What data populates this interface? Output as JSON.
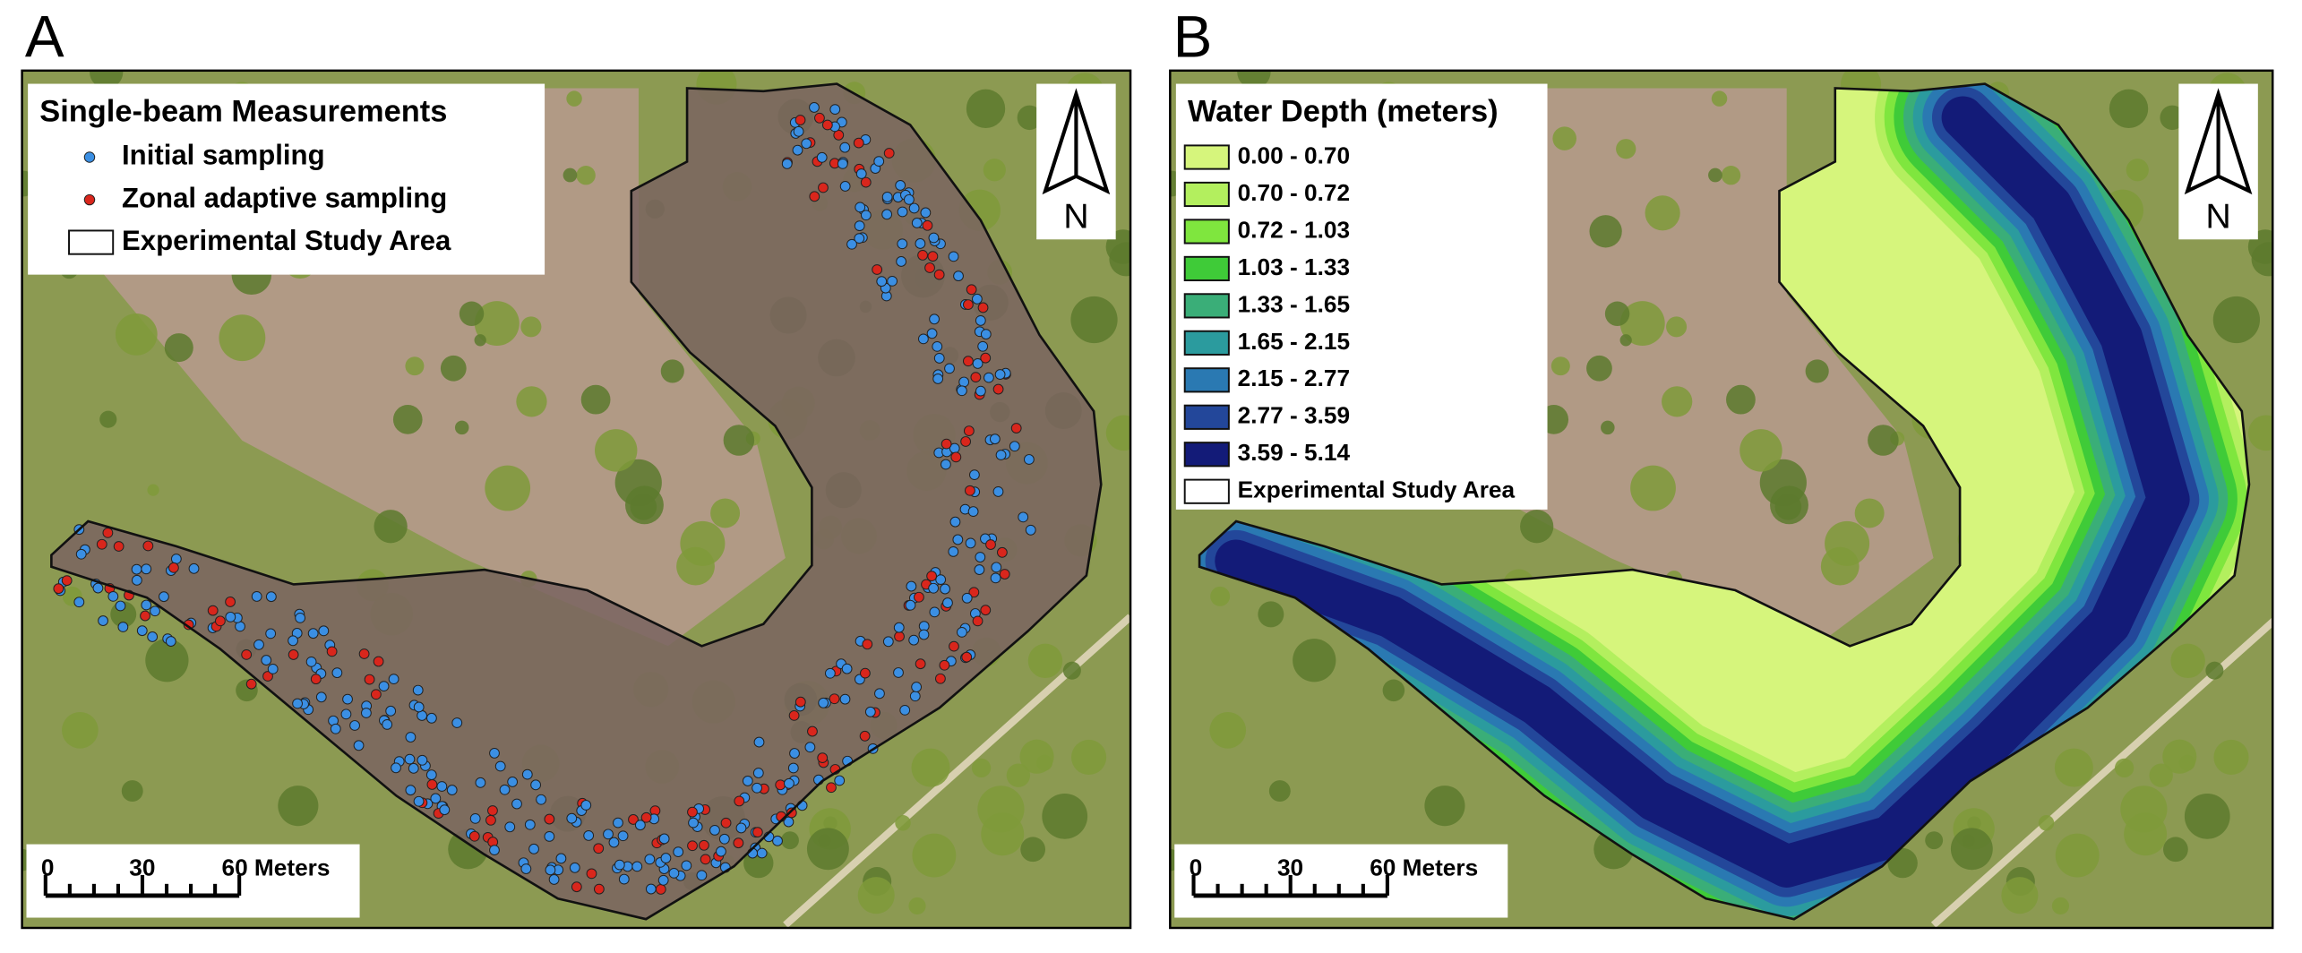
{
  "panels": [
    {
      "label": "A",
      "legend": {
        "title": "Single-beam Measurements",
        "items": [
          {
            "label": "Initial sampling",
            "color": "#3b8fe3"
          },
          {
            "label": "Zonal adaptive sampling",
            "color": "#d9261c"
          },
          {
            "label": "Experimental Study Area"
          }
        ]
      },
      "north_arrow": "N",
      "scale_bar": [
        "0",
        "30",
        "60 Meters"
      ]
    },
    {
      "label": "B",
      "legend": {
        "title": "Water Depth (meters)",
        "items": [
          {
            "label": "0.00 - 0.70",
            "color": "#d6f57c"
          },
          {
            "label": "0.70 - 0.72",
            "color": "#b3ef5e"
          },
          {
            "label": "0.72 - 1.03",
            "color": "#7fe63e"
          },
          {
            "label": "1.03 - 1.33",
            "color": "#3fcb38"
          },
          {
            "label": "1.33 - 1.65",
            "color": "#3aae78"
          },
          {
            "label": "1.65 - 2.15",
            "color": "#2b9b9e"
          },
          {
            "label": "2.15 - 2.77",
            "color": "#2a79b2"
          },
          {
            "label": "2.77 - 3.59",
            "color": "#23479a"
          },
          {
            "label": "3.59 - 5.14",
            "color": "#131b78"
          },
          {
            "label": "Experimental Study Area"
          }
        ]
      },
      "north_arrow": "N",
      "scale_bar": [
        "0",
        "30",
        "60 Meters"
      ]
    }
  ]
}
